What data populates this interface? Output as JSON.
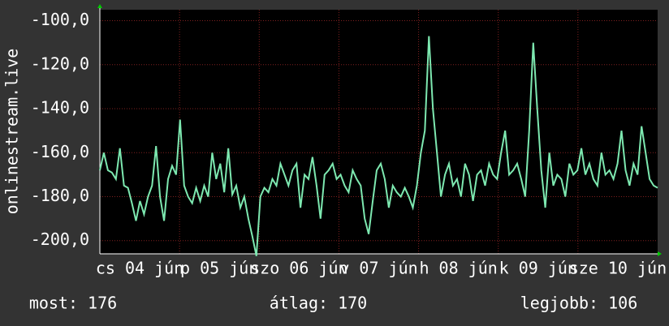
{
  "chart_data": {
    "type": "line",
    "ylabel": "onlinestream.live",
    "ylim": [
      -206,
      -95
    ],
    "yticks": [
      {
        "value": -100,
        "label": "-100,0"
      },
      {
        "value": -120,
        "label": "-120,0"
      },
      {
        "value": -140,
        "label": "-140,0"
      },
      {
        "value": -160,
        "label": "-160,0"
      },
      {
        "value": -180,
        "label": "-180,0"
      },
      {
        "value": -200,
        "label": "-200,0"
      }
    ],
    "xlabels": [
      "cs 04 jún",
      "p 05 jún",
      "szo 06 jún",
      "v 07 jún",
      "h 08 jún",
      "k 09 jún",
      "sze 10 jún"
    ],
    "grid": true,
    "color": "#7de8b0",
    "values": [
      -168,
      -160,
      -168,
      -169,
      -172,
      -158,
      -175,
      -176,
      -183,
      -191,
      -182,
      -188,
      -180,
      -175,
      -157,
      -180,
      -191,
      -172,
      -166,
      -170,
      -145,
      -175,
      -180,
      -183,
      -176,
      -182,
      -175,
      -180,
      -160,
      -172,
      -165,
      -178,
      -158,
      -179,
      -175,
      -185,
      -180,
      -190,
      -198,
      -207,
      -180,
      -176,
      -178,
      -172,
      -175,
      -165,
      -170,
      -175,
      -168,
      -165,
      -185,
      -170,
      -172,
      -162,
      -175,
      -190,
      -170,
      -168,
      -165,
      -172,
      -170,
      -175,
      -178,
      -168,
      -172,
      -175,
      -190,
      -197,
      -182,
      -168,
      -165,
      -172,
      -185,
      -175,
      -178,
      -180,
      -176,
      -180,
      -185,
      -175,
      -160,
      -150,
      -107,
      -140,
      -160,
      -180,
      -170,
      -165,
      -175,
      -172,
      -180,
      -165,
      -170,
      -182,
      -170,
      -168,
      -175,
      -165,
      -170,
      -172,
      -160,
      -150,
      -170,
      -168,
      -165,
      -172,
      -180,
      -150,
      -110,
      -140,
      -168,
      -185,
      -160,
      -175,
      -170,
      -172,
      -180,
      -165,
      -170,
      -168,
      -158,
      -170,
      -165,
      -172,
      -175,
      -160,
      -170,
      -168,
      -172,
      -165,
      -150,
      -168,
      -175,
      -165,
      -170,
      -148,
      -160,
      -172,
      -175,
      -176
    ],
    "stats": [
      "most: 176",
      "átlag: 170",
      "legjobb: 106"
    ]
  }
}
